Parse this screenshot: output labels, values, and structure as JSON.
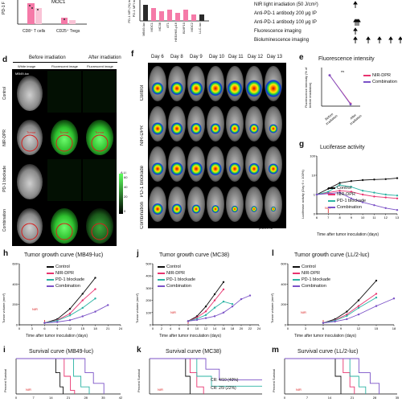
{
  "colors": {
    "control": "#111111",
    "nir_dpr": "#e8336f",
    "pd1": "#2bb3a3",
    "combination": "#7b52c7",
    "bar_pink": "#f57aa8",
    "bar_dark": "#2a2a2a",
    "green_signal": "#39d339",
    "red_circle": "#d81c1c"
  },
  "panel_a": {
    "legend_moc1": "MOC1",
    "ylabel_partial": "PD-1 F",
    "xlabels": [
      "CD8⁺ T cells",
      "CD25⁺ Tregs"
    ]
  },
  "panel_b": {
    "ylabel_partial": "PD-1 MFI (%) in",
    "ylabel_partial2": "PD-1 MFI in",
    "xlabels": [
      "MB49-luc",
      "MOC1",
      "MC38",
      "4T1",
      "HEE/HIE-p16",
      "B16F10",
      "MOC2",
      "LLC-luc"
    ]
  },
  "panel_c": {
    "rows": [
      "NIR light irradiation (50 J/cm²)",
      "Anti-PD-1 antibody 200 μg IP",
      "Anti-PD-1 antibody 100 μg IP",
      "Fluorescence imaging",
      "Bioluminescence imaging"
    ]
  },
  "panel_d": {
    "label": "d",
    "header_before": "Before irradiation",
    "header_after": "After irradiation",
    "col_white": "White image",
    "col_fluo": "Fluorescent image",
    "col_fluo2": "Fluorescent image",
    "model": "MB49-luc",
    "rows": [
      "Control",
      "NIR-DPR",
      "PD-1 blockade",
      "Combination"
    ],
    "tumor_label": "Tumor",
    "colorbar_title": "A.U.",
    "colorbar_ticks": [
      "60",
      "40",
      "20",
      "0"
    ]
  },
  "panel_f": {
    "label": "f",
    "days": [
      "Day 6",
      "Day 8",
      "Day 9",
      "Day 10",
      "Day 11",
      "Day 12",
      "Day 13"
    ],
    "rows": [
      "Control",
      "NIR-DPR",
      "PD-1 blockade",
      "Combination"
    ],
    "scale_label": "p/s/cm²/sr"
  },
  "panel_e": {
    "label": "e",
    "title": "Fluorescence intensity",
    "ylabel": "Fluorescence intensity (% of before irradiation)",
    "xlabels": [
      "Before irradiation",
      "After irradiation"
    ],
    "ns": "ns",
    "legend": [
      "NIR-DPR",
      "Combination"
    ]
  },
  "panel_g": {
    "label": "g",
    "title": "Luciferase activity",
    "ylabel": "Luciferase activity (Day 6 = 100%)",
    "xlabel": "Time after tumor inoculation (days)",
    "xticks": [
      "6",
      "7",
      "8",
      "9",
      "10",
      "11",
      "12",
      "13"
    ],
    "yticks": [
      "100",
      "10",
      "1",
      "0"
    ],
    "nir_tag": "NIR",
    "legend": [
      "Control",
      "NIR-DPR",
      "PD-1 blockade",
      "Combination"
    ]
  },
  "panel_h": {
    "label": "h",
    "title": "Tumor growth curve (MB49-luc)",
    "ylabel": "Tumor volume (mm³)",
    "xlabel": "Time after tumor inoculation (days)",
    "yticks": [
      "600",
      "400",
      "200",
      "0"
    ],
    "xticks": [
      "0",
      "3",
      "6",
      "9",
      "12",
      "15",
      "18",
      "21",
      "24"
    ],
    "nir_tag": "NIR",
    "legend": [
      "Control",
      "NIR-DPR",
      "PD-1 blockade",
      "Combination"
    ]
  },
  "panel_j": {
    "label": "j",
    "title": "Tumor growth curve (MC38)",
    "ylabel": "Tumor volume (mm³)",
    "xlabel": "Time after tumor inoculation (days)",
    "yticks": [
      "500",
      "400",
      "300",
      "200",
      "100",
      "0"
    ],
    "xticks": [
      "0",
      "2",
      "4",
      "6",
      "8",
      "10",
      "12",
      "14",
      "16",
      "18",
      "20",
      "22",
      "24"
    ],
    "nir_tag": "NIR",
    "legend": [
      "Control",
      "NIR-DPR",
      "PD-1 blockade",
      "Combination"
    ]
  },
  "panel_l": {
    "label": "l",
    "title": "Tumor growth curve (LL/2-luc)",
    "ylabel": "Tumor volume (mm³)",
    "xlabel": "Time after tumor inoculation (days)",
    "yticks": [
      "600",
      "400",
      "200",
      "0"
    ],
    "xticks": [
      "0",
      "3",
      "6",
      "9",
      "12",
      "15",
      "18"
    ],
    "nir_tag": "NIR",
    "legend": [
      "Control",
      "NIR-DPR",
      "PD-1 blockade",
      "Combination"
    ]
  },
  "panel_i": {
    "label": "i",
    "title": "Survival curve (MB49-luc)",
    "ylabel": "Percent Survival",
    "xticks": [
      "0",
      "7",
      "14",
      "21",
      "28",
      "35",
      "42"
    ],
    "nir_tag": "NIR"
  },
  "panel_k": {
    "label": "k",
    "title": "Survival curve (MC38)",
    "ylabel": "Percent Survival",
    "annot1": "CR: 4/10 (40%)",
    "annot2": "CR: 2/9 (22%)",
    "nir_tag": "NIR"
  },
  "panel_m": {
    "label": "m",
    "title": "Survival curve (LL/2-luc)",
    "ylabel": "Percent Survival",
    "xticks": [
      "0",
      "7",
      "14",
      "21",
      "28",
      "35"
    ],
    "nir_tag": "NIR"
  },
  "chart_data": [
    {
      "type": "line",
      "id": "panel_e",
      "title": "Fluorescence intensity",
      "categories": [
        "Before irradiation",
        "After irradiation"
      ],
      "series": [
        {
          "name": "NIR-DPR",
          "values": [
            100,
            8
          ]
        },
        {
          "name": "Combination",
          "values": [
            100,
            6
          ]
        }
      ],
      "ylim": [
        0,
        120
      ]
    },
    {
      "type": "line",
      "id": "panel_g",
      "title": "Luciferase activity",
      "x": [
        6,
        7,
        8,
        9,
        10,
        11,
        12,
        13
      ],
      "series": [
        {
          "name": "Control",
          "values": [
            100,
            130,
            160,
            170,
            175,
            178,
            180,
            185
          ]
        },
        {
          "name": "NIR-DPR",
          "values": [
            100,
            110,
            120,
            115,
            100,
            90,
            85,
            80
          ]
        },
        {
          "name": "PD-1 blockade",
          "values": [
            100,
            115,
            150,
            140,
            120,
            110,
            100,
            95
          ]
        },
        {
          "name": "Combination",
          "values": [
            100,
            105,
            110,
            80,
            60,
            45,
            30,
            20
          ]
        }
      ],
      "ylim": [
        0,
        300
      ]
    },
    {
      "type": "line",
      "id": "panel_h",
      "title": "Tumor growth curve (MB49-luc)",
      "x": [
        6,
        9,
        12,
        15,
        18,
        21
      ],
      "series": [
        {
          "name": "Control",
          "values": [
            20,
            60,
            170,
            330,
            500,
            null
          ]
        },
        {
          "name": "NIR-DPR",
          "values": [
            20,
            50,
            120,
            260,
            380,
            null
          ]
        },
        {
          "name": "PD-1 blockade",
          "values": [
            20,
            45,
            100,
            180,
            280,
            null
          ]
        },
        {
          "name": "Combination",
          "values": [
            20,
            30,
            50,
            90,
            140,
            210
          ]
        }
      ],
      "ylim": [
        0,
        650
      ]
    },
    {
      "type": "line",
      "id": "panel_j",
      "title": "Tumor growth curve (MC38)",
      "x": [
        8,
        10,
        12,
        14,
        16,
        18,
        20,
        22
      ],
      "series": [
        {
          "name": "Control",
          "values": [
            30,
            70,
            150,
            250,
            350,
            null,
            null,
            null
          ]
        },
        {
          "name": "NIR-DPR",
          "values": [
            30,
            60,
            110,
            200,
            290,
            null,
            null,
            null
          ]
        },
        {
          "name": "PD-1 blockade",
          "values": [
            30,
            50,
            80,
            140,
            190,
            170,
            null,
            null
          ]
        },
        {
          "name": "Combination",
          "values": [
            30,
            40,
            55,
            70,
            100,
            150,
            210,
            240
          ]
        }
      ],
      "ylim": [
        0,
        500
      ]
    },
    {
      "type": "line",
      "id": "panel_l",
      "title": "Tumor growth curve (LL/2-luc)",
      "x": [
        6,
        8,
        10,
        12,
        15,
        18
      ],
      "series": [
        {
          "name": "Control",
          "values": [
            20,
            60,
            140,
            260,
            470,
            null
          ]
        },
        {
          "name": "NIR-DPR",
          "values": [
            20,
            50,
            110,
            200,
            330,
            null
          ]
        },
        {
          "name": "PD-1 blockade",
          "values": [
            20,
            45,
            95,
            180,
            290,
            null
          ]
        },
        {
          "name": "Combination",
          "values": [
            20,
            35,
            60,
            110,
            200,
            280
          ]
        }
      ],
      "ylim": [
        0,
        650
      ]
    }
  ]
}
